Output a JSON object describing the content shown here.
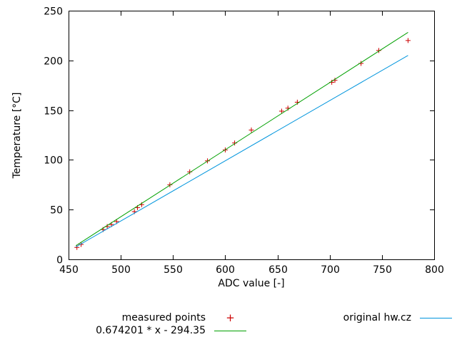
{
  "chart_data": {
    "type": "scatter",
    "title": "",
    "xlabel": "ADC value [-]",
    "ylabel": "Temperature [°C]",
    "xlim": [
      450,
      800
    ],
    "ylim": [
      0,
      250
    ],
    "xticks": [
      450,
      500,
      550,
      600,
      650,
      700,
      750,
      800
    ],
    "yticks": [
      0,
      50,
      100,
      150,
      200,
      250
    ],
    "grid": false,
    "legend_position": "below-plot",
    "series": [
      {
        "name": "measured points",
        "type": "points",
        "marker": "+",
        "color": "#cc0000",
        "points": [
          [
            458,
            12
          ],
          [
            462,
            15
          ],
          [
            483,
            30
          ],
          [
            487,
            33
          ],
          [
            491,
            35
          ],
          [
            496,
            38
          ],
          [
            513,
            48
          ],
          [
            516,
            52
          ],
          [
            520,
            55
          ],
          [
            547,
            75
          ],
          [
            566,
            88
          ],
          [
            583,
            99
          ],
          [
            600,
            110
          ],
          [
            609,
            117
          ],
          [
            625,
            130
          ],
          [
            654,
            149
          ],
          [
            660,
            152
          ],
          [
            669,
            158
          ],
          [
            702,
            178
          ],
          [
            705,
            180
          ],
          [
            730,
            197
          ],
          [
            747,
            210
          ],
          [
            775,
            220
          ]
        ]
      },
      {
        "name": "0.674201 * x - 294.35",
        "type": "line",
        "color": "#00a000",
        "points": [
          [
            457,
            13.8
          ],
          [
            775,
            228.2
          ]
        ]
      },
      {
        "name": "original hw.cz",
        "type": "line",
        "color": "#0095dd",
        "points": [
          [
            457,
            12.5
          ],
          [
            775,
            205
          ]
        ]
      }
    ]
  }
}
